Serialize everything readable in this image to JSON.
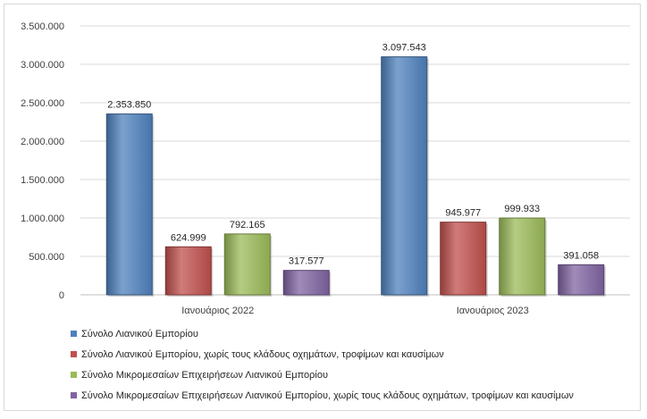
{
  "chart_data": {
    "type": "bar",
    "categories": [
      "Ιανουάριος 2022",
      "Ιανουάριος 2023"
    ],
    "series": [
      {
        "name": "Σύνολο Λιανικού  Εμπορίου",
        "values": [
          2353850,
          3097543
        ],
        "labels": [
          "2.353.850",
          "3.097.543"
        ],
        "color": "#4f81bd"
      },
      {
        "name": "Σύνολο Λιανικού  Εμπορίου, χωρίς τους κλάδους οχημάτων, τροφίμων και καυσίμων",
        "values": [
          624999,
          945977
        ],
        "labels": [
          "624.999",
          "945.977"
        ],
        "color": "#c0504d"
      },
      {
        "name": "Σύνολο Μικρομεσαίων  Επιχειρήσεων Λιανικού  Εμπορίου",
        "values": [
          792165,
          999933
        ],
        "labels": [
          "792.165",
          "999.933"
        ],
        "color": "#9bbb59"
      },
      {
        "name": "Σύνολο Μικρομεσαίων  Επιχειρήσεων Λιανικού  Εμπορίου, χωρίς τους κλάδους οχημάτων, τροφίμων και καυσίμων",
        "values": [
          317577,
          391058
        ],
        "labels": [
          "317.577",
          "391.058"
        ],
        "color": "#8064a2"
      }
    ],
    "yticks": [
      0,
      500000,
      1000000,
      1500000,
      2000000,
      2500000,
      3000000,
      3500000
    ],
    "ytick_labels": [
      "0",
      "500.000",
      "1.000.000",
      "1.500.000",
      "2.000.000",
      "2.500.000",
      "3.000.000",
      "3.500.000"
    ],
    "ylim": [
      0,
      3500000
    ],
    "grid": true,
    "legend_position": "bottom-left"
  }
}
